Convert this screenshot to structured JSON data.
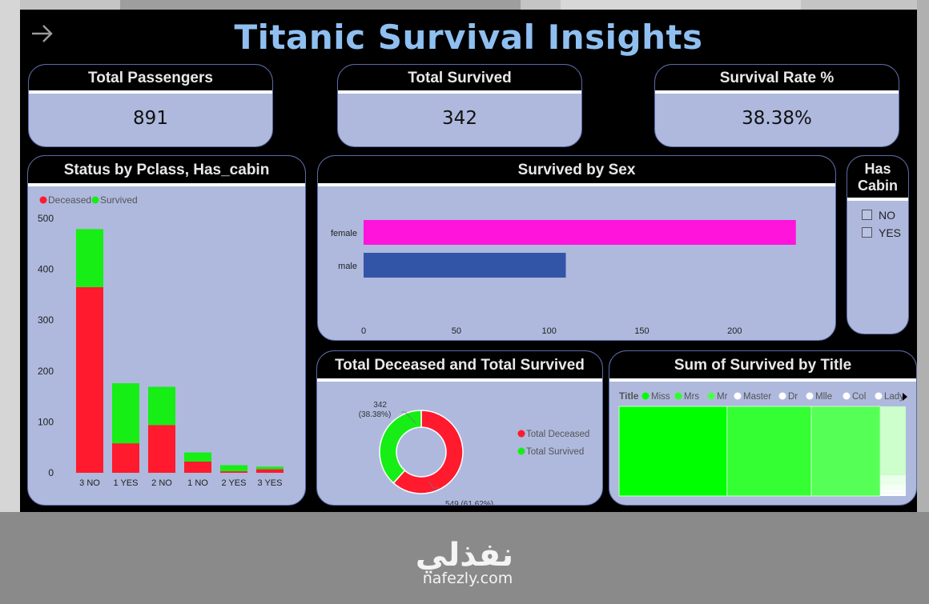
{
  "title": "Titanic Survival Insights",
  "kpis": [
    {
      "label": "Total Passengers",
      "value": "891"
    },
    {
      "label": "Total Survived",
      "value": "342"
    },
    {
      "label": "Survival Rate %",
      "value": "38.38%"
    }
  ],
  "colors": {
    "deceased": "#ff1a2e",
    "survived": "#16ee16",
    "female": "#ff14dc",
    "male": "#3355a8",
    "card_bg": "#aeb9dd",
    "title": "#8fbff0"
  },
  "chart_data": [
    {
      "type": "bar",
      "title": "Status by Pclass, Has_cabin",
      "stacked": true,
      "categories": [
        "3 NO",
        "1 YES",
        "2 NO",
        "1 NO",
        "2 YES",
        "3 YES"
      ],
      "series": [
        {
          "name": "Deceased",
          "values": [
            365,
            58,
            94,
            22,
            3,
            7
          ]
        },
        {
          "name": "Survived",
          "values": [
            114,
            118,
            75,
            18,
            12,
            5
          ]
        }
      ],
      "yticks": [
        "0",
        "100",
        "200",
        "300",
        "400",
        "500"
      ],
      "ylim": [
        0,
        500
      ],
      "legend": "top-left"
    },
    {
      "type": "bar",
      "orientation": "horizontal",
      "title": "Survived by Sex",
      "categories": [
        "female",
        "male"
      ],
      "values": [
        233,
        109
      ],
      "xticks": [
        "0",
        "50",
        "100",
        "150",
        "200"
      ],
      "xlim": [
        0,
        240
      ]
    },
    {
      "type": "pie",
      "donut": true,
      "title": "Total Deceased and Total Survived",
      "labels": [
        "Total Deceased",
        "Total Survived"
      ],
      "values": [
        549,
        342
      ],
      "data_labels": [
        "549 (61.62%)",
        "342 (38.38%)"
      ],
      "legend": "right"
    },
    {
      "type": "treemap",
      "title": "Sum of Survived by Title",
      "legend_title": "Title",
      "labels": [
        "Miss",
        "Mrs",
        "Mr",
        "Master",
        "Dr",
        "Mlle",
        "Col",
        "Lady"
      ],
      "values": [
        127,
        99,
        81,
        23,
        3,
        2,
        1,
        1
      ],
      "legend": "top-left"
    }
  ],
  "slicer": {
    "title_line1": "Has",
    "title_line2": "Cabin",
    "options": [
      "NO",
      "YES"
    ]
  },
  "brand": {
    "arabic": "نفذلي",
    "url": "nafezly.com"
  }
}
